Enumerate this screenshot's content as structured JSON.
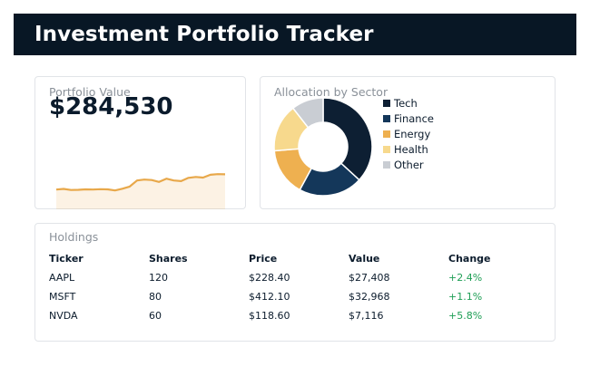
{
  "header": {
    "title": "Investment Portfolio Tracker"
  },
  "portfolio": {
    "label": "Portfolio Value",
    "value": "$284,530",
    "trend_color": "#e8a84a",
    "trend": [
      0.24,
      0.27,
      0.22,
      0.23,
      0.25,
      0.24,
      0.26,
      0.25,
      0.2,
      0.28,
      0.38,
      0.66,
      0.7,
      0.68,
      0.59,
      0.74,
      0.66,
      0.63,
      0.78,
      0.82,
      0.79,
      0.92,
      0.95,
      0.94
    ]
  },
  "allocation": {
    "label": "Allocation by Sector",
    "sectors": [
      {
        "name": "Tech",
        "share": 0.35,
        "color": "#0d1f33"
      },
      {
        "name": "Finance",
        "share": 0.2,
        "color": "#14375a"
      },
      {
        "name": "Energy",
        "share": 0.15,
        "color": "#eeb050"
      },
      {
        "name": "Health",
        "share": 0.15,
        "color": "#f7d98d"
      },
      {
        "name": "Other",
        "share": 0.1,
        "color": "#c9cdd3"
      }
    ]
  },
  "holdings": {
    "label": "Holdings",
    "columns": [
      "Ticker",
      "Shares",
      "Price",
      "Value",
      "Change"
    ],
    "rows": [
      {
        "ticker": "AAPL",
        "shares": "120",
        "price": "$228.40",
        "value": "$27,408",
        "change": "+2.4%"
      },
      {
        "ticker": "MSFT",
        "shares": "80",
        "price": "$412.10",
        "value": "$32,968",
        "change": "+1.1%"
      },
      {
        "ticker": "NVDA",
        "shares": "60",
        "price": "$118.60",
        "value": "$7,116",
        "change": "+5.8%"
      }
    ],
    "positive_color": "#1e9e55"
  }
}
